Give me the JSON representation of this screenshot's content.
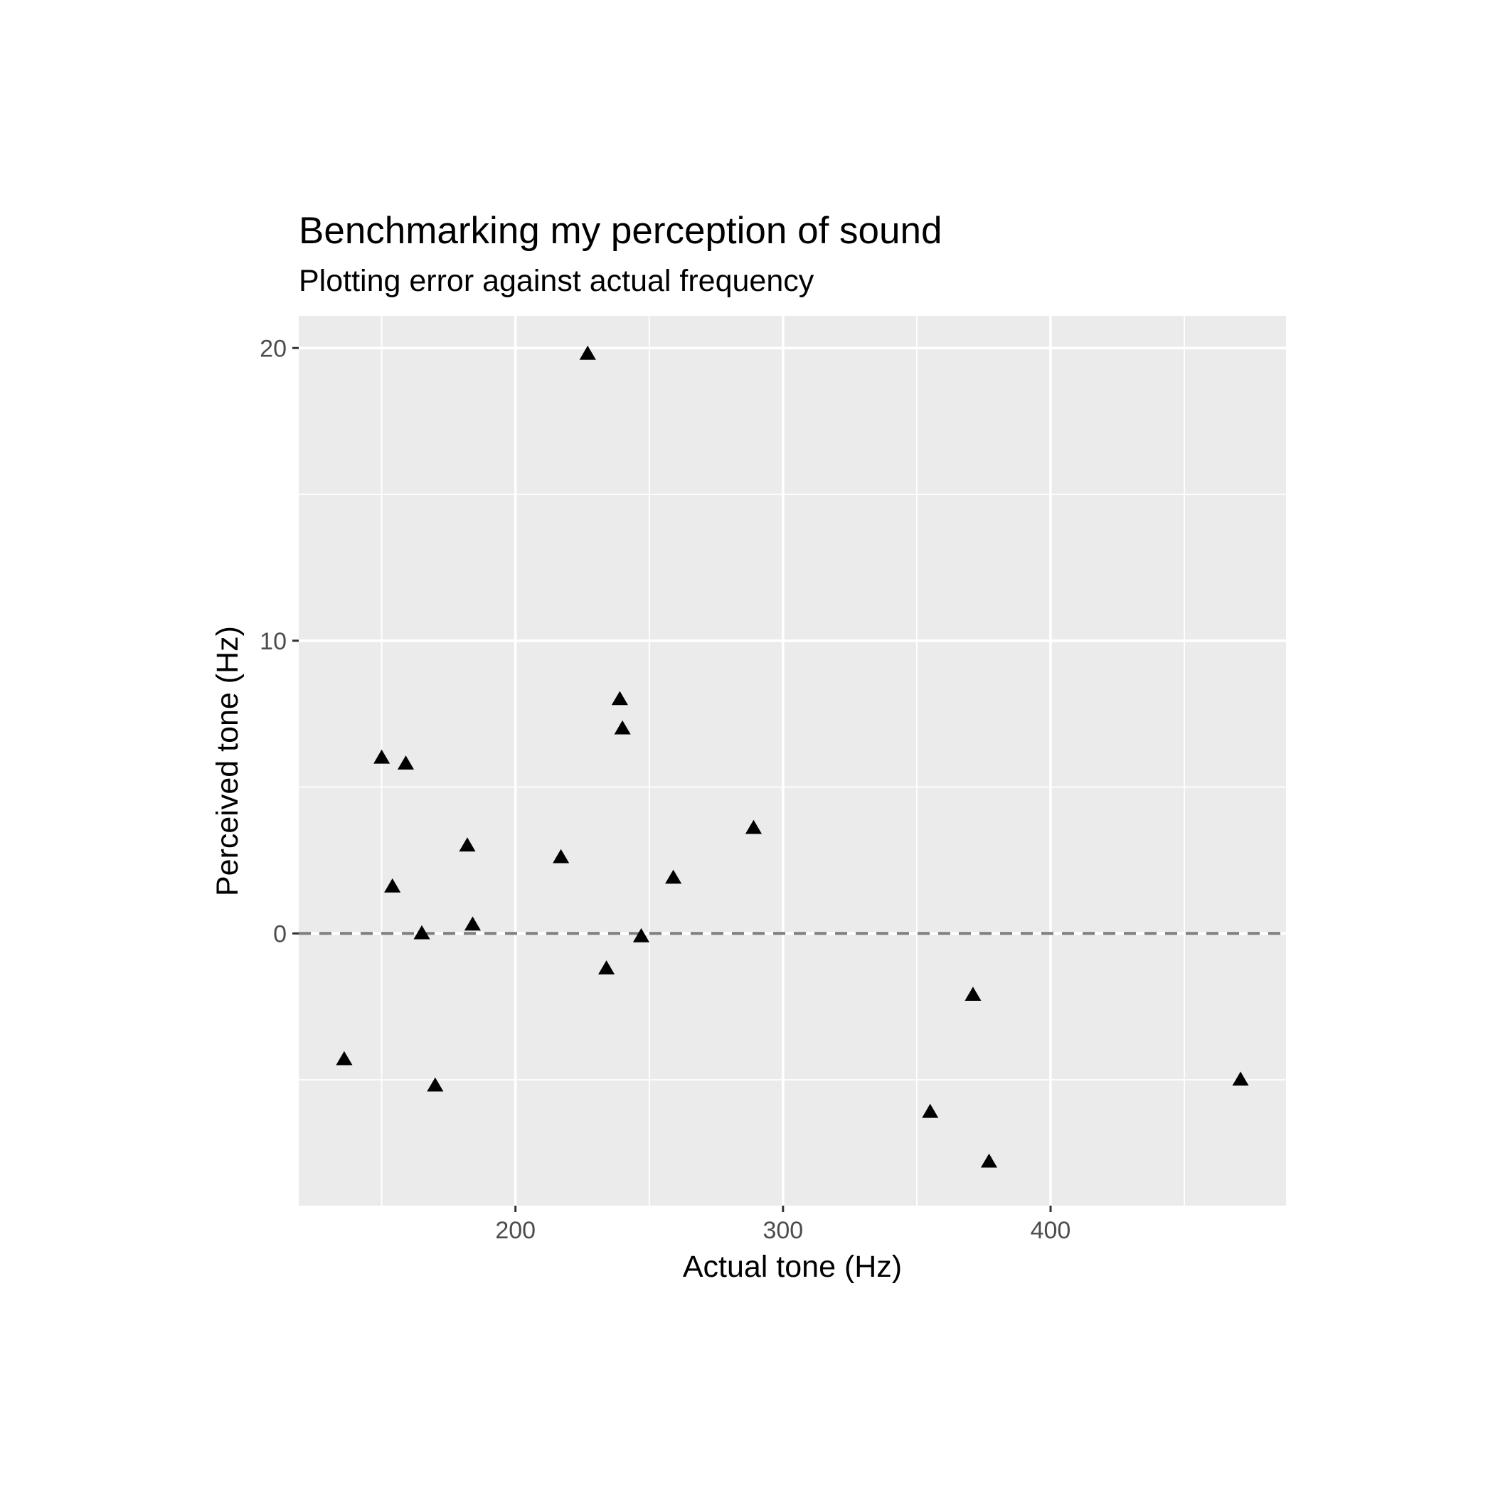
{
  "chart_data": {
    "type": "scatter",
    "title": "Benchmarking my perception of sound",
    "subtitle": "Plotting error against actual frequency",
    "xlabel": "Actual tone (Hz)",
    "ylabel": "Perceived tone (Hz)",
    "xlim": [
      119,
      488
    ],
    "ylim": [
      -9.3,
      21.1
    ],
    "x_ticks": [
      200,
      300,
      400
    ],
    "x_tick_labels": [
      "200",
      "300",
      "400"
    ],
    "x_minor_ticks": [
      150,
      250,
      350,
      450
    ],
    "y_ticks": [
      0,
      10,
      20
    ],
    "y_tick_labels": [
      "0",
      "10",
      "20"
    ],
    "y_minor_ticks": [
      -5,
      5,
      15
    ],
    "grid": true,
    "legend": "none",
    "reference_line": {
      "y": 0,
      "style": "dashed",
      "color": "#7f7f7f"
    },
    "panel_background": "#ebebeb",
    "point_shape": "triangle",
    "point_color": "#000000",
    "points": [
      {
        "x": 136,
        "y": -4.3
      },
      {
        "x": 150,
        "y": 6.0
      },
      {
        "x": 154,
        "y": 1.6
      },
      {
        "x": 159,
        "y": 5.8
      },
      {
        "x": 165,
        "y": 0.0
      },
      {
        "x": 170,
        "y": -5.2
      },
      {
        "x": 182,
        "y": 3.0
      },
      {
        "x": 184,
        "y": 0.3
      },
      {
        "x": 217,
        "y": 2.6
      },
      {
        "x": 227,
        "y": 19.8
      },
      {
        "x": 234,
        "y": -1.2
      },
      {
        "x": 239,
        "y": 8.0
      },
      {
        "x": 240,
        "y": 7.0
      },
      {
        "x": 247,
        "y": -0.1
      },
      {
        "x": 259,
        "y": 1.9
      },
      {
        "x": 289,
        "y": 3.6
      },
      {
        "x": 355,
        "y": -6.1
      },
      {
        "x": 371,
        "y": -2.1
      },
      {
        "x": 377,
        "y": -7.8
      },
      {
        "x": 471,
        "y": -5.0
      }
    ]
  }
}
